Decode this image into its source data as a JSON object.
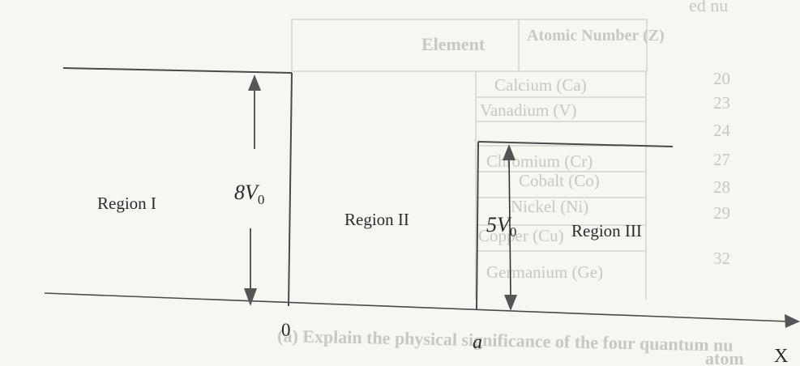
{
  "ghost": {
    "top_fragment": "ed nu",
    "table_header": [
      "Element",
      "Atomic Number (Z)"
    ],
    "table_rows": [
      [
        "Calcium (Ca)",
        "20"
      ],
      [
        "Vanadium (V)",
        "23"
      ],
      [
        "Chromium (Cr)",
        "24"
      ],
      [
        "Cobalt (Co)",
        "27"
      ],
      [
        "Nickel (Ni)",
        "28"
      ],
      [
        "Copper (Cu)",
        "29"
      ],
      [
        "Germanium (Ge)",
        "32"
      ]
    ],
    "bottom_line_1": "(a) Explain the physical significance of the four quantum nu",
    "bottom_line_2": "atom"
  },
  "diagram": {
    "region_1": "Region I",
    "region_2": "Region II",
    "region_3": "Region III",
    "barrier_left_V": "8V",
    "barrier_left_sub": "0",
    "barrier_right_V": "5V",
    "barrier_right_sub": "0",
    "origin_label": "0",
    "a_label": "a",
    "axis_label": "X"
  },
  "colors": {
    "ink": "#2b2b2b",
    "ghost": "#c9c7c2",
    "paper": "#f7f6f2"
  }
}
